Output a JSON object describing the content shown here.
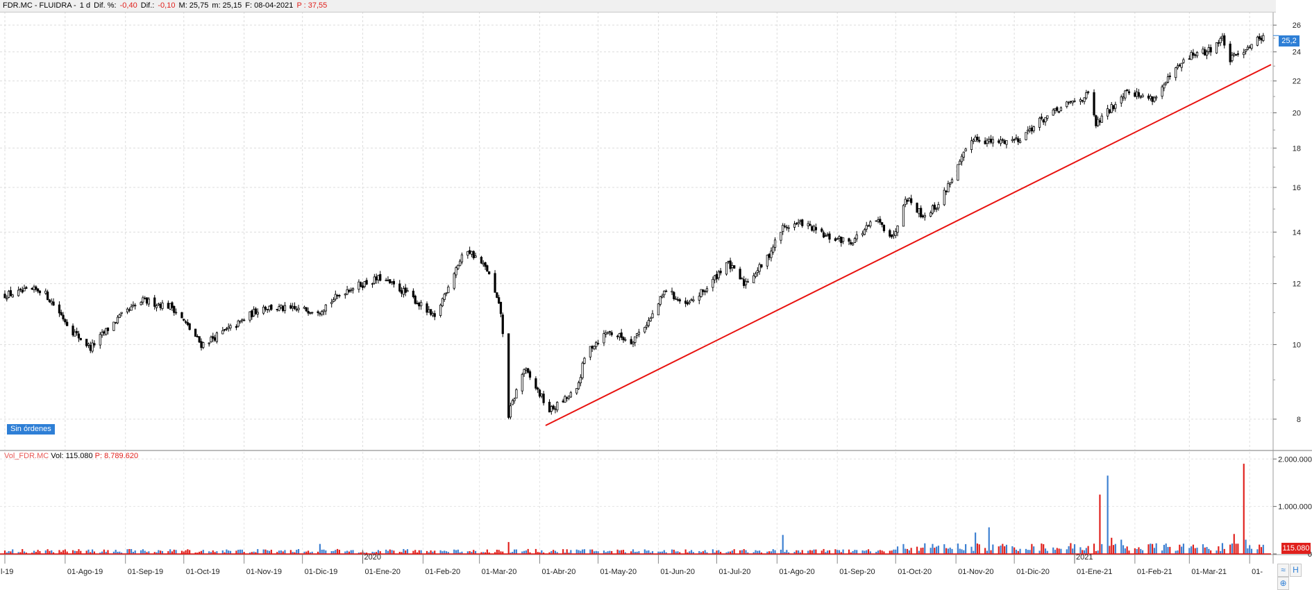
{
  "header": {
    "symbol": "FDR.MC - FLUIDRA -",
    "period": "1 d",
    "dif_pct_label": "Dif. %:",
    "dif_pct_value": "-0,40",
    "dif_label": "Dif.:",
    "dif_value": "-0,10",
    "max_label": "M: 25,75",
    "min_label": "m: 25,15",
    "date_label": "F: 08-04-2021",
    "p_label": "P : 37,55"
  },
  "badges": {
    "orders": "Sin órdenes",
    "last_price": "25,2",
    "last_volume": "115.080"
  },
  "volume_header": {
    "label": "Vol_FDR.MC",
    "vol": "Vol: 115.080",
    "p": "P: 8.789.620"
  },
  "colors": {
    "up_volume": "#3b7fd1",
    "down_volume": "#e0201c",
    "trendline": "#e8120f",
    "candle": "#000000"
  },
  "icons": [
    "zoom-icon",
    "scroll-icon",
    "settings-icon"
  ],
  "chart_data": [
    {
      "type": "candlestick",
      "scale": "log",
      "ylim": [
        7.3,
        27
      ],
      "y_ticks": [
        8,
        10,
        12,
        14,
        16,
        18,
        20,
        22,
        24,
        26
      ],
      "x_tick_labels": [
        "l-19",
        "01-Ago-19",
        "01-Sep-19",
        "01-Oct-19",
        "01-Nov-19",
        "01-Dic-19",
        "01-Ene-20",
        "01-Feb-20",
        "01-Mar-20",
        "01-Abr-20",
        "01-May-20",
        "01-Jun-20",
        "01-Jul-20",
        "01-Ago-20",
        "01-Sep-20",
        "01-Oct-20",
        "01-Nov-20",
        "01-Dic-20",
        "01-Ene-21",
        "01-Feb-21",
        "01-Mar-21",
        "01-"
      ],
      "year_labels": [
        "2020",
        "2021"
      ],
      "anchors": [
        [
          "2019-07-01",
          11.6
        ],
        [
          "2019-07-20",
          11.8
        ],
        [
          "2019-08-05",
          10.4
        ],
        [
          "2019-08-14",
          9.9
        ],
        [
          "2019-08-28",
          10.8
        ],
        [
          "2019-09-10",
          11.4
        ],
        [
          "2019-09-25",
          11.2
        ],
        [
          "2019-10-10",
          10.0
        ],
        [
          "2019-10-28",
          10.6
        ],
        [
          "2019-11-10",
          11.2
        ],
        [
          "2019-11-25",
          11.1
        ],
        [
          "2019-12-10",
          11.1
        ],
        [
          "2019-12-24",
          11.8
        ],
        [
          "2020-01-10",
          12.2
        ],
        [
          "2020-01-25",
          11.6
        ],
        [
          "2020-02-07",
          10.8
        ],
        [
          "2020-02-18",
          12.6
        ],
        [
          "2020-02-24",
          13.3
        ],
        [
          "2020-03-05",
          12.5
        ],
        [
          "2020-03-12",
          11.0
        ],
        [
          "2020-03-16",
          8.1
        ],
        [
          "2020-03-24",
          9.3
        ],
        [
          "2020-04-06",
          8.2
        ],
        [
          "2020-04-20",
          8.7
        ],
        [
          "2020-04-25",
          9.8
        ],
        [
          "2020-05-06",
          10.4
        ],
        [
          "2020-05-18",
          10.1
        ],
        [
          "2020-05-28",
          10.8
        ],
        [
          "2020-06-05",
          11.8
        ],
        [
          "2020-06-15",
          11.2
        ],
        [
          "2020-06-27",
          11.9
        ],
        [
          "2020-07-06",
          12.8
        ],
        [
          "2020-07-15",
          12.0
        ],
        [
          "2020-07-26",
          12.8
        ],
        [
          "2020-08-04",
          14.2
        ],
        [
          "2020-08-14",
          14.4
        ],
        [
          "2020-08-26",
          13.8
        ],
        [
          "2020-09-08",
          13.6
        ],
        [
          "2020-09-21",
          14.5
        ],
        [
          "2020-09-30",
          13.8
        ],
        [
          "2020-10-06",
          15.6
        ],
        [
          "2020-10-15",
          14.7
        ],
        [
          "2020-10-23",
          15.2
        ],
        [
          "2020-11-03",
          17.2
        ],
        [
          "2020-11-10",
          18.6
        ],
        [
          "2020-11-20",
          18.3
        ],
        [
          "2020-12-03",
          18.5
        ],
        [
          "2020-12-14",
          19.5
        ],
        [
          "2020-12-30",
          20.6
        ],
        [
          "2021-01-08",
          21.1
        ],
        [
          "2021-01-12",
          19.3
        ],
        [
          "2021-01-20",
          20.3
        ],
        [
          "2021-01-28",
          21.5
        ],
        [
          "2021-02-04",
          21.0
        ],
        [
          "2021-02-11",
          20.9
        ],
        [
          "2021-02-22",
          22.7
        ],
        [
          "2021-03-02",
          23.8
        ],
        [
          "2021-03-10",
          24.0
        ],
        [
          "2021-03-18",
          25.0
        ],
        [
          "2021-03-22",
          23.4
        ],
        [
          "2021-03-30",
          24.3
        ],
        [
          "2021-04-08",
          25.2
        ]
      ],
      "last": 25.2,
      "trendline": {
        "from": [
          "2020-04-04",
          7.85
        ],
        "to": [
          "2021-04-12",
          23.1
        ]
      }
    },
    {
      "type": "bar",
      "series_label": "Vol_FDR.MC",
      "ylim": [
        0,
        2150000
      ],
      "y_ticks": [
        0,
        1000000,
        2000000
      ],
      "y_tick_labels": [
        "0",
        "1.000.000",
        "2.000.000"
      ],
      "base_volume": 65000,
      "spikes": [
        [
          "2019-12-10",
          210000,
          "up"
        ],
        [
          "2020-03-16",
          250000,
          "down"
        ],
        [
          "2020-08-04",
          400000,
          "up"
        ],
        [
          "2020-11-11",
          450000,
          "up"
        ],
        [
          "2020-11-18",
          560000,
          "up"
        ],
        [
          "2021-01-14",
          1250000,
          "down"
        ],
        [
          "2021-01-18",
          1650000,
          "up"
        ],
        [
          "2021-01-20",
          340000,
          "down"
        ],
        [
          "2021-01-25",
          300000,
          "up"
        ],
        [
          "2021-03-24",
          420000,
          "down"
        ],
        [
          "2021-03-29",
          1900000,
          "down"
        ],
        [
          "2021-03-30",
          300000,
          "up"
        ]
      ]
    }
  ]
}
